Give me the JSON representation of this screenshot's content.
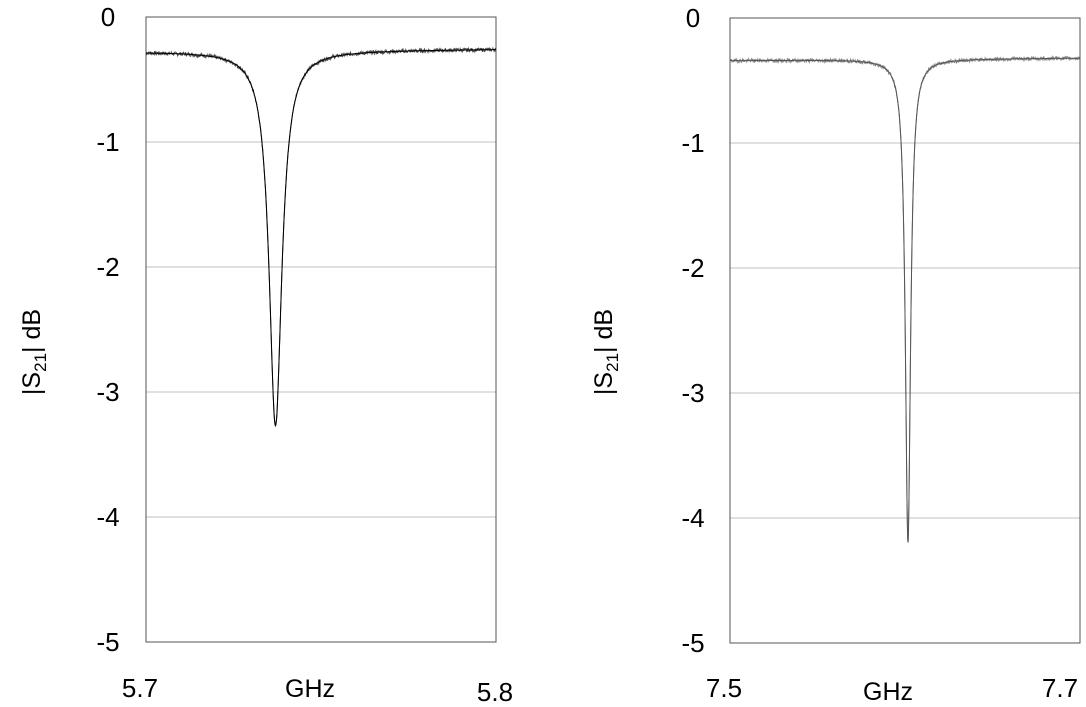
{
  "chart_data": [
    {
      "type": "line",
      "xlabel": "GHz",
      "ylabel_main": "|S",
      "ylabel_sub": "21",
      "ylabel_tail": "| dB",
      "x_tick_labels": [
        "5.7",
        "5.8"
      ],
      "y_tick_labels": [
        "0",
        "-1",
        "-2",
        "-3",
        "-4",
        "-5"
      ],
      "xlim": [
        5.7,
        5.8
      ],
      "ylim": [
        -5,
        0
      ],
      "grid": "horizontal",
      "line_color": "#000000",
      "grid_color": "#c0c0c0",
      "resonance": {
        "center_ghz": 5.737,
        "baseline_db": -0.27,
        "min_db": -3.27,
        "half_width_ghz": 0.0022,
        "baseline_slope_db_per_ghz": 0.2
      },
      "series": [
        {
          "style": "measured-and-fit",
          "x": [
            5.7,
            5.705,
            5.71,
            5.715,
            5.72,
            5.725,
            5.728,
            5.73,
            5.732,
            5.734,
            5.735,
            5.736,
            5.737,
            5.738,
            5.739,
            5.74,
            5.742,
            5.745,
            5.75,
            5.755,
            5.76,
            5.77,
            5.78,
            5.79,
            5.8
          ],
          "y": [
            -0.28,
            -0.29,
            -0.31,
            -0.34,
            -0.4,
            -0.55,
            -0.8,
            -1.15,
            -1.7,
            -2.55,
            -3.0,
            -3.22,
            -3.27,
            -3.1,
            -2.65,
            -2.1,
            -1.3,
            -0.75,
            -0.47,
            -0.38,
            -0.33,
            -0.29,
            -0.27,
            -0.26,
            -0.26
          ]
        }
      ]
    },
    {
      "type": "line",
      "xlabel": "GHz",
      "ylabel_main": "|S",
      "ylabel_sub": "21",
      "ylabel_tail": "| dB",
      "x_tick_labels": [
        "7.5",
        "7.7"
      ],
      "y_tick_labels": [
        "0",
        "-1",
        "-2",
        "-3",
        "-4",
        "-5"
      ],
      "xlim": [
        7.5,
        7.7
      ],
      "ylim": [
        -5,
        0
      ],
      "grid": "horizontal",
      "line_color": "#555555",
      "grid_color": "#c0c0c0",
      "resonance": {
        "center_ghz": 7.6017,
        "baseline_db": -0.33,
        "min_db": -4.2,
        "half_width_ghz": 0.0018,
        "baseline_slope_db_per_ghz": 0.1
      },
      "series": [
        {
          "style": "measured-and-fit",
          "x": [
            7.5,
            7.52,
            7.54,
            7.56,
            7.58,
            7.59,
            7.595,
            7.598,
            7.6,
            7.601,
            7.6017,
            7.603,
            7.605,
            7.608,
            7.612,
            7.62,
            7.64,
            7.66,
            7.68,
            7.7
          ],
          "y": [
            -0.33,
            -0.34,
            -0.35,
            -0.37,
            -0.45,
            -0.7,
            -1.3,
            -2.4,
            -3.7,
            -4.1,
            -4.2,
            -3.8,
            -2.8,
            -1.5,
            -0.8,
            -0.48,
            -0.38,
            -0.36,
            -0.35,
            -0.35
          ]
        }
      ]
    }
  ]
}
